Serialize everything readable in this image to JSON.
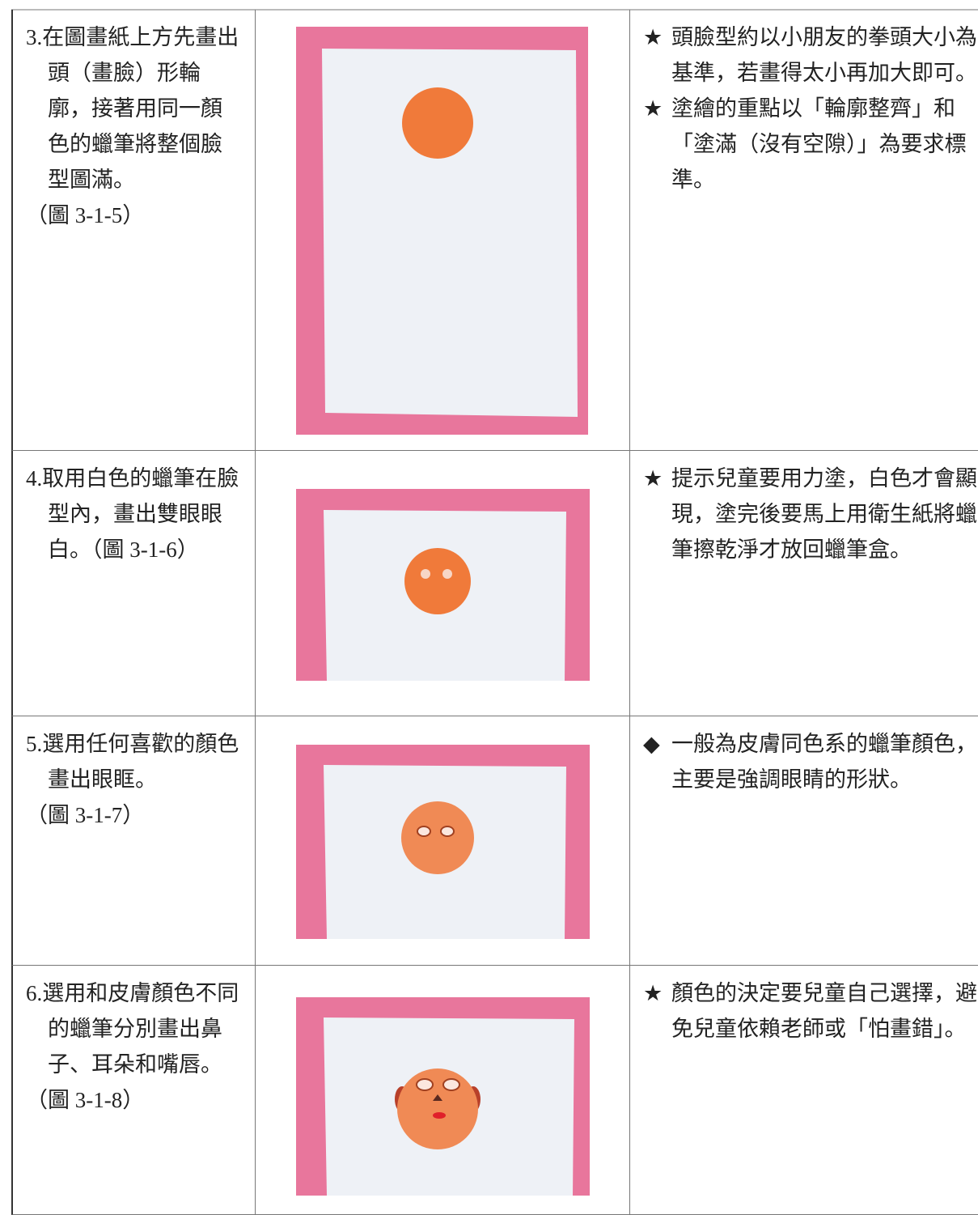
{
  "table": {
    "rows": [
      {
        "number": "3.",
        "text": "在圖畫紙上方先畫出頭（畫臉）形輪廓，接著用同一顏色的蠟筆將整個臉型圖滿。",
        "figure": "（圖 3-1-5）",
        "notes": [
          {
            "bullet": "★",
            "text": "頭臉型約以小朋友的拳頭大小為基準，若畫得太小再加大即可。"
          },
          {
            "bullet": "★",
            "text": "塗繪的重點以「輪廓整齊」和「塗滿（沒有空隙）」為要求標準。"
          }
        ]
      },
      {
        "number": "4.",
        "text": "取用白色的蠟筆在臉型內，畫出雙眼眼白。",
        "figure": "（圖 3-1-6）",
        "notes": [
          {
            "bullet": "★",
            "text": "提示兒童要用力塗，白色才會顯現，塗完後要馬上用衛生紙將蠟筆擦乾淨才放回蠟筆盒。"
          }
        ]
      },
      {
        "number": "5.",
        "text": "選用任何喜歡的顏色畫出眼眶。",
        "figure": "（圖 3-1-7）",
        "notes": [
          {
            "bullet": "◆",
            "text": "一般為皮膚同色系的蠟筆顏色，主要是強調眼睛的形狀。"
          }
        ]
      },
      {
        "number": "6.",
        "text": "選用和皮膚顏色不同的蠟筆分別畫出鼻子、耳朵和嘴唇。",
        "figure": "（圖 3-1-8）",
        "notes": [
          {
            "bullet": "★",
            "text": "顏色的決定要兒童自己選擇，避免兒童依賴老師或「怕畫錯」。"
          }
        ]
      }
    ]
  }
}
